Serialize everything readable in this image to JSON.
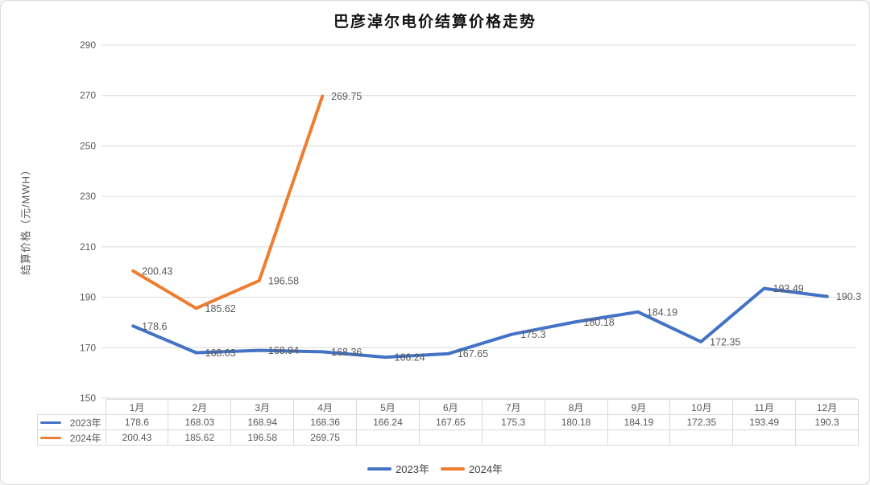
{
  "title": "巴彦淖尔电价结算价格走势",
  "chart_data": {
    "type": "line",
    "title": "巴彦淖尔电价结算价格走势",
    "xlabel": "",
    "ylabel": "结算价格（元/MWH）",
    "categories": [
      "1月",
      "2月",
      "3月",
      "4月",
      "5月",
      "6月",
      "7月",
      "8月",
      "9月",
      "10月",
      "11月",
      "12月"
    ],
    "series": [
      {
        "name": "2023年",
        "color": "#4472C4",
        "values": [
          178.6,
          168.03,
          168.94,
          168.36,
          166.24,
          167.65,
          175.3,
          180.18,
          184.19,
          172.35,
          193.49,
          190.3
        ]
      },
      {
        "name": "2024年",
        "color": "#ED7D31",
        "values": [
          200.43,
          185.62,
          196.58,
          269.75
        ]
      }
    ],
    "ylim": [
      150,
      290
    ],
    "yticks": [
      150,
      170,
      190,
      210,
      230,
      250,
      270,
      290
    ],
    "grid": true,
    "data_labels": true,
    "data_table": true,
    "legend_position": "bottom"
  },
  "colors": {
    "series_2023": "#4472C4",
    "series_2024": "#ED7D31",
    "gridline": "#D9D9D9",
    "table_border": "#D9D9D9",
    "axis_text": "#595959",
    "data_label_text": "#595959",
    "legend_text": "#404040",
    "title_text": "#111111"
  }
}
